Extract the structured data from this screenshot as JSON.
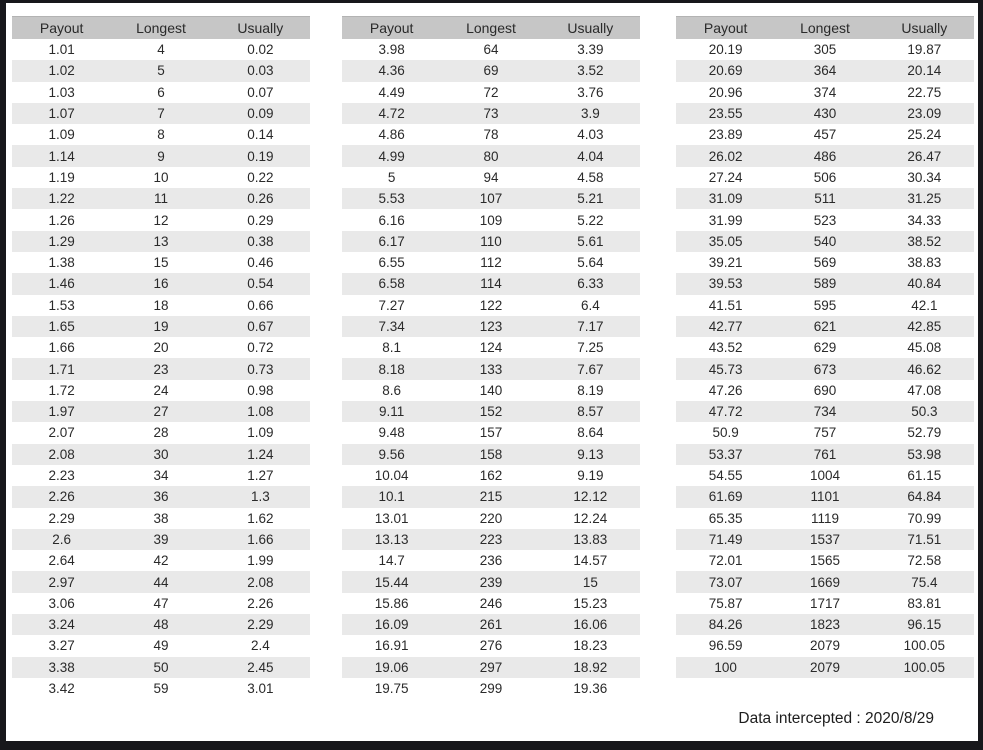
{
  "columns": [
    "Payout",
    "Longest",
    "Usually"
  ],
  "tables": [
    {
      "name": "payout-table-1",
      "rows": [
        [
          "1.01",
          "4",
          "0.02"
        ],
        [
          "1.02",
          "5",
          "0.03"
        ],
        [
          "1.03",
          "6",
          "0.07"
        ],
        [
          "1.07",
          "7",
          "0.09"
        ],
        [
          "1.09",
          "8",
          "0.14"
        ],
        [
          "1.14",
          "9",
          "0.19"
        ],
        [
          "1.19",
          "10",
          "0.22"
        ],
        [
          "1.22",
          "11",
          "0.26"
        ],
        [
          "1.26",
          "12",
          "0.29"
        ],
        [
          "1.29",
          "13",
          "0.38"
        ],
        [
          "1.38",
          "15",
          "0.46"
        ],
        [
          "1.46",
          "16",
          "0.54"
        ],
        [
          "1.53",
          "18",
          "0.66"
        ],
        [
          "1.65",
          "19",
          "0.67"
        ],
        [
          "1.66",
          "20",
          "0.72"
        ],
        [
          "1.71",
          "23",
          "0.73"
        ],
        [
          "1.72",
          "24",
          "0.98"
        ],
        [
          "1.97",
          "27",
          "1.08"
        ],
        [
          "2.07",
          "28",
          "1.09"
        ],
        [
          "2.08",
          "30",
          "1.24"
        ],
        [
          "2.23",
          "34",
          "1.27"
        ],
        [
          "2.26",
          "36",
          "1.3"
        ],
        [
          "2.29",
          "38",
          "1.62"
        ],
        [
          "2.6",
          "39",
          "1.66"
        ],
        [
          "2.64",
          "42",
          "1.99"
        ],
        [
          "2.97",
          "44",
          "2.08"
        ],
        [
          "3.06",
          "47",
          "2.26"
        ],
        [
          "3.24",
          "48",
          "2.29"
        ],
        [
          "3.27",
          "49",
          "2.4"
        ],
        [
          "3.38",
          "50",
          "2.45"
        ],
        [
          "3.42",
          "59",
          "3.01"
        ]
      ]
    },
    {
      "name": "payout-table-2",
      "rows": [
        [
          "3.98",
          "64",
          "3.39"
        ],
        [
          "4.36",
          "69",
          "3.52"
        ],
        [
          "4.49",
          "72",
          "3.76"
        ],
        [
          "4.72",
          "73",
          "3.9"
        ],
        [
          "4.86",
          "78",
          "4.03"
        ],
        [
          "4.99",
          "80",
          "4.04"
        ],
        [
          "5",
          "94",
          "4.58"
        ],
        [
          "5.53",
          "107",
          "5.21"
        ],
        [
          "6.16",
          "109",
          "5.22"
        ],
        [
          "6.17",
          "110",
          "5.61"
        ],
        [
          "6.55",
          "112",
          "5.64"
        ],
        [
          "6.58",
          "114",
          "6.33"
        ],
        [
          "7.27",
          "122",
          "6.4"
        ],
        [
          "7.34",
          "123",
          "7.17"
        ],
        [
          "8.1",
          "124",
          "7.25"
        ],
        [
          "8.18",
          "133",
          "7.67"
        ],
        [
          "8.6",
          "140",
          "8.19"
        ],
        [
          "9.11",
          "152",
          "8.57"
        ],
        [
          "9.48",
          "157",
          "8.64"
        ],
        [
          "9.56",
          "158",
          "9.13"
        ],
        [
          "10.04",
          "162",
          "9.19"
        ],
        [
          "10.1",
          "215",
          "12.12"
        ],
        [
          "13.01",
          "220",
          "12.24"
        ],
        [
          "13.13",
          "223",
          "13.83"
        ],
        [
          "14.7",
          "236",
          "14.57"
        ],
        [
          "15.44",
          "239",
          "15"
        ],
        [
          "15.86",
          "246",
          "15.23"
        ],
        [
          "16.09",
          "261",
          "16.06"
        ],
        [
          "16.91",
          "276",
          "18.23"
        ],
        [
          "19.06",
          "297",
          "18.92"
        ],
        [
          "19.75",
          "299",
          "19.36"
        ]
      ]
    },
    {
      "name": "payout-table-3",
      "rows": [
        [
          "20.19",
          "305",
          "19.87"
        ],
        [
          "20.69",
          "364",
          "20.14"
        ],
        [
          "20.96",
          "374",
          "22.75"
        ],
        [
          "23.55",
          "430",
          "23.09"
        ],
        [
          "23.89",
          "457",
          "25.24"
        ],
        [
          "26.02",
          "486",
          "26.47"
        ],
        [
          "27.24",
          "506",
          "30.34"
        ],
        [
          "31.09",
          "511",
          "31.25"
        ],
        [
          "31.99",
          "523",
          "34.33"
        ],
        [
          "35.05",
          "540",
          "38.52"
        ],
        [
          "39.21",
          "569",
          "38.83"
        ],
        [
          "39.53",
          "589",
          "40.84"
        ],
        [
          "41.51",
          "595",
          "42.1"
        ],
        [
          "42.77",
          "621",
          "42.85"
        ],
        [
          "43.52",
          "629",
          "45.08"
        ],
        [
          "45.73",
          "673",
          "46.62"
        ],
        [
          "47.26",
          "690",
          "47.08"
        ],
        [
          "47.72",
          "734",
          "50.3"
        ],
        [
          "50.9",
          "757",
          "52.79"
        ],
        [
          "53.37",
          "761",
          "53.98"
        ],
        [
          "54.55",
          "1004",
          "61.15"
        ],
        [
          "61.69",
          "1101",
          "64.84"
        ],
        [
          "65.35",
          "1119",
          "70.99"
        ],
        [
          "71.49",
          "1537",
          "71.51"
        ],
        [
          "72.01",
          "1565",
          "72.58"
        ],
        [
          "73.07",
          "1669",
          "75.4"
        ],
        [
          "75.87",
          "1717",
          "83.81"
        ],
        [
          "84.26",
          "1823",
          "96.15"
        ],
        [
          "96.59",
          "2079",
          "100.05"
        ],
        [
          "100",
          "2079",
          "100.05"
        ]
      ]
    }
  ],
  "footer": {
    "text": "Data intercepted : 2020/8/29"
  },
  "colors": {
    "header_bg": "#c6c6c6",
    "stripe_bg": "#e9e9e9",
    "frame": "#17171b",
    "text": "#2a2a2a"
  }
}
